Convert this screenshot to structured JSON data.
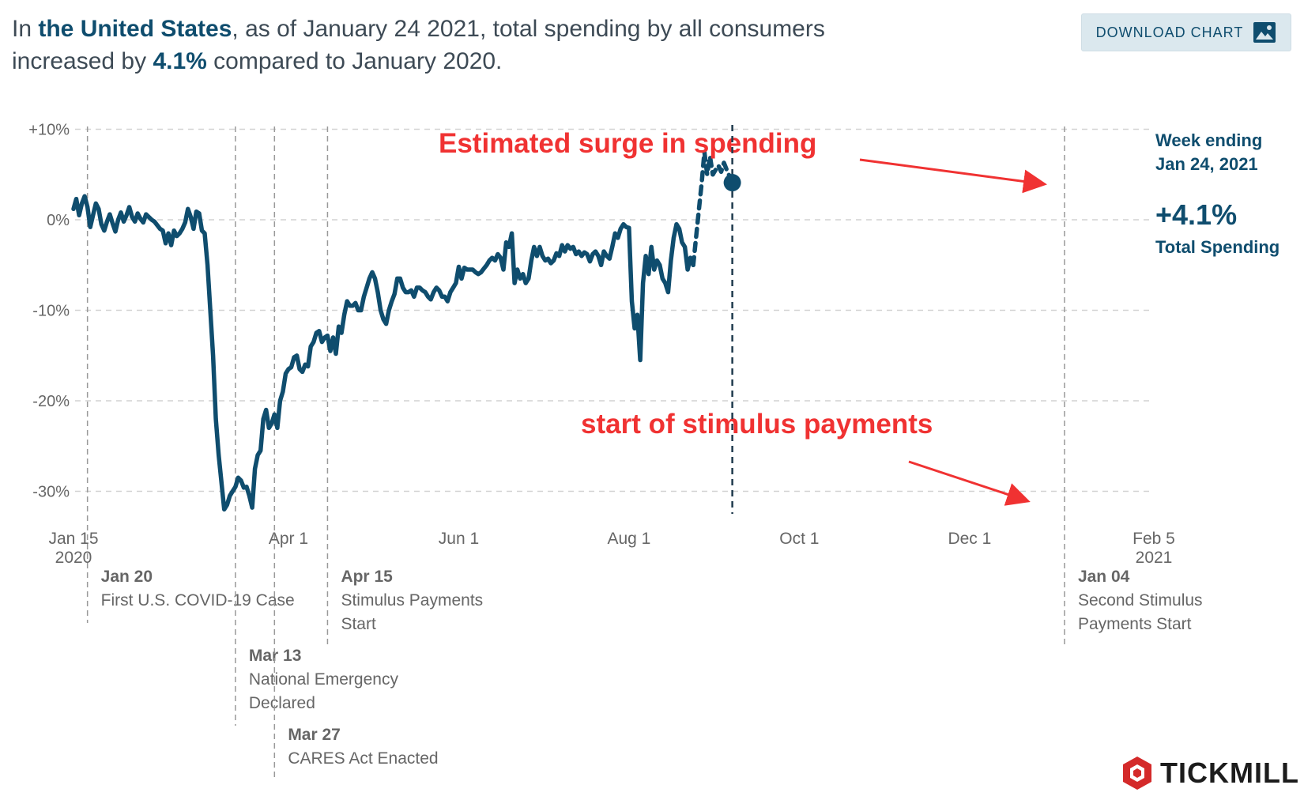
{
  "headline": {
    "prefix": "In ",
    "region": "the United States",
    "middle": ", as of January 24 2021, total spending by all consumers increased by ",
    "value": "4.1%",
    "suffix": " compared to January 2020."
  },
  "download_button": {
    "label": "DOWNLOAD CHART",
    "icon": "image-icon"
  },
  "colors": {
    "line": "#0f4d6e",
    "annotation_red": "#f03232",
    "grid": "#d2d2d2",
    "event": "#999999"
  },
  "chart_data": {
    "type": "line",
    "title": "Total spending by all consumers vs January 2020",
    "xlabel": "",
    "ylabel": "",
    "ylim": [
      -34,
      12
    ],
    "x_range_days": [
      0,
      387
    ],
    "y_ticks": [
      {
        "value": 10,
        "label": "+10%"
      },
      {
        "value": 0,
        "label": "0%"
      },
      {
        "value": -10,
        "label": "-10%"
      },
      {
        "value": -20,
        "label": "-20%"
      },
      {
        "value": -30,
        "label": "-30%"
      }
    ],
    "x_ticks": [
      {
        "day": 0,
        "label": "Jan 15",
        "sublabel": "2020"
      },
      {
        "day": 77,
        "label": "Apr 1",
        "sublabel": ""
      },
      {
        "day": 138,
        "label": "Jun 1",
        "sublabel": ""
      },
      {
        "day": 199,
        "label": "Aug 1",
        "sublabel": ""
      },
      {
        "day": 260,
        "label": "Oct 1",
        "sublabel": ""
      },
      {
        "day": 321,
        "label": "Dec 1",
        "sublabel": ""
      },
      {
        "day": 387,
        "label": "Feb 5",
        "sublabel": "2021"
      }
    ],
    "events": [
      {
        "day": 5,
        "date": "Jan 20",
        "desc": [
          "First U.S. COVID-19 Case"
        ],
        "level": 0
      },
      {
        "day": 58,
        "date": "Mar 13",
        "desc": [
          "National Emergency",
          "Declared"
        ],
        "level": 1
      },
      {
        "day": 72,
        "date": "Mar 27",
        "desc": [
          "CARES Act Enacted"
        ],
        "level": 2
      },
      {
        "day": 91,
        "date": "Apr 15",
        "desc": [
          "Stimulus Payments",
          "Start"
        ],
        "level": 0
      },
      {
        "day": 355,
        "date": "Jan 04",
        "desc": [
          "Second Stimulus",
          "Payments Start"
        ],
        "level": 0
      }
    ],
    "series": [
      {
        "name": "Total Spending",
        "style": "solid",
        "points": [
          [
            0,
            1.2
          ],
          [
            1,
            2.3
          ],
          [
            2,
            0.5
          ],
          [
            3,
            1.8
          ],
          [
            4,
            2.6
          ],
          [
            5,
            1.4
          ],
          [
            6,
            -0.8
          ],
          [
            7,
            0.5
          ],
          [
            8,
            1.8
          ],
          [
            9,
            1.2
          ],
          [
            10,
            -0.5
          ],
          [
            11,
            -1.2
          ],
          [
            12,
            -0.2
          ],
          [
            13,
            0.6
          ],
          [
            14,
            -0.4
          ],
          [
            15,
            -1.3
          ],
          [
            16,
            0
          ],
          [
            17,
            0.8
          ],
          [
            18,
            -0.2
          ],
          [
            19,
            0.5
          ],
          [
            20,
            1.4
          ],
          [
            21,
            0.3
          ],
          [
            22,
            -0.2
          ],
          [
            23,
            0.7
          ],
          [
            24,
            0.1
          ],
          [
            25,
            -0.3
          ],
          [
            26,
            0.6
          ],
          [
            27,
            0.3
          ],
          [
            28,
            0
          ],
          [
            29,
            -0.2
          ],
          [
            30,
            -0.6
          ],
          [
            31,
            -1
          ],
          [
            32,
            -1.2
          ],
          [
            33,
            -2.6
          ],
          [
            34,
            -1.5
          ],
          [
            35,
            -2.8
          ],
          [
            36,
            -1.2
          ],
          [
            37,
            -1.8
          ],
          [
            38,
            -1.5
          ],
          [
            39,
            -1
          ],
          [
            40,
            -0.3
          ],
          [
            41,
            1.2
          ],
          [
            42,
            0.3
          ],
          [
            43,
            -1
          ],
          [
            44,
            0.9
          ],
          [
            45,
            0.7
          ],
          [
            46,
            -1.2
          ],
          [
            47,
            -1.5
          ],
          [
            48,
            -5
          ],
          [
            49,
            -10
          ],
          [
            50,
            -15
          ],
          [
            51,
            -22
          ],
          [
            52,
            -26
          ],
          [
            53,
            -29
          ],
          [
            54,
            -32
          ],
          [
            55,
            -31.5
          ],
          [
            56,
            -30.5
          ],
          [
            57,
            -30
          ],
          [
            58,
            -29.5
          ],
          [
            59,
            -28.5
          ],
          [
            60,
            -28.8
          ],
          [
            61,
            -29.6
          ],
          [
            62,
            -29.5
          ],
          [
            63,
            -30.5
          ],
          [
            64,
            -31.8
          ],
          [
            65,
            -27.5
          ],
          [
            66,
            -26
          ],
          [
            67,
            -25.5
          ],
          [
            68,
            -22
          ],
          [
            69,
            -21
          ],
          [
            70,
            -23
          ],
          [
            71,
            -22.5
          ],
          [
            72,
            -21.5
          ],
          [
            73,
            -23
          ],
          [
            74,
            -20
          ],
          [
            75,
            -19
          ],
          [
            76,
            -17
          ],
          [
            77,
            -16.5
          ],
          [
            78,
            -16.3
          ],
          [
            79,
            -15.2
          ],
          [
            80,
            -15
          ],
          [
            81,
            -16.5
          ],
          [
            82,
            -16.8
          ],
          [
            83,
            -16
          ],
          [
            84,
            -16.2
          ],
          [
            85,
            -14
          ],
          [
            86,
            -13.5
          ],
          [
            87,
            -12.5
          ],
          [
            88,
            -12.3
          ],
          [
            89,
            -13.5
          ],
          [
            90,
            -13
          ],
          [
            91,
            -12.8
          ],
          [
            92,
            -14.5
          ],
          [
            93,
            -13
          ],
          [
            94,
            -14.8
          ],
          [
            95,
            -11.8
          ],
          [
            96,
            -12.5
          ],
          [
            97,
            -10.5
          ],
          [
            98,
            -9
          ],
          [
            99,
            -9.5
          ],
          [
            100,
            -9.5
          ],
          [
            101,
            -9.2
          ],
          [
            102,
            -10
          ],
          [
            103,
            -10
          ],
          [
            104,
            -8.5
          ],
          [
            105,
            -7.5
          ],
          [
            106,
            -6.5
          ],
          [
            107,
            -5.8
          ],
          [
            108,
            -6.5
          ],
          [
            109,
            -8
          ],
          [
            110,
            -10
          ],
          [
            111,
            -11
          ],
          [
            112,
            -11.5
          ],
          [
            113,
            -10
          ],
          [
            114,
            -9
          ],
          [
            115,
            -8.2
          ],
          [
            116,
            -6.5
          ],
          [
            117,
            -6.5
          ],
          [
            118,
            -7.5
          ],
          [
            119,
            -8
          ],
          [
            120,
            -8
          ],
          [
            121,
            -7.8
          ],
          [
            122,
            -8.5
          ],
          [
            123,
            -7.5
          ],
          [
            124,
            -7.5
          ],
          [
            125,
            -7.8
          ],
          [
            126,
            -8
          ],
          [
            127,
            -8.5
          ],
          [
            128,
            -8.8
          ],
          [
            129,
            -8
          ],
          [
            130,
            -7.5
          ],
          [
            131,
            -7.8
          ],
          [
            132,
            -8.5
          ],
          [
            133,
            -8.5
          ],
          [
            134,
            -9
          ],
          [
            135,
            -8
          ],
          [
            136,
            -7.5
          ],
          [
            137,
            -7
          ],
          [
            138,
            -5.2
          ],
          [
            139,
            -6.5
          ],
          [
            140,
            -5.3
          ],
          [
            141,
            -5.5
          ],
          [
            142,
            -5.5
          ],
          [
            143,
            -5.5
          ],
          [
            144,
            -5.8
          ],
          [
            145,
            -6
          ],
          [
            146,
            -5.8
          ],
          [
            147,
            -5.4
          ],
          [
            148,
            -5
          ],
          [
            149,
            -4.5
          ],
          [
            150,
            -4.2
          ],
          [
            151,
            -4.5
          ],
          [
            152,
            -3.8
          ],
          [
            153,
            -4.2
          ],
          [
            154,
            -5.5
          ],
          [
            155,
            -2.5
          ],
          [
            156,
            -3
          ],
          [
            157,
            -1.5
          ],
          [
            158,
            -7
          ],
          [
            159,
            -5.5
          ],
          [
            160,
            -6.5
          ],
          [
            161,
            -6
          ],
          [
            162,
            -7
          ],
          [
            163,
            -6.5
          ],
          [
            164,
            -4.5
          ],
          [
            165,
            -3
          ],
          [
            166,
            -4
          ],
          [
            167,
            -3
          ],
          [
            168,
            -4
          ],
          [
            169,
            -4.5
          ],
          [
            170,
            -4.3
          ],
          [
            171,
            -4.8
          ],
          [
            172,
            -4.5
          ],
          [
            173,
            -3.7
          ],
          [
            174,
            -4
          ],
          [
            175,
            -2.8
          ],
          [
            176,
            -3.5
          ],
          [
            177,
            -2.8
          ],
          [
            178,
            -3.2
          ],
          [
            179,
            -3
          ],
          [
            180,
            -3.8
          ],
          [
            181,
            -3.5
          ],
          [
            182,
            -4
          ],
          [
            183,
            -3.6
          ],
          [
            184,
            -3.8
          ],
          [
            185,
            -4.6
          ],
          [
            186,
            -3.8
          ],
          [
            187,
            -3.5
          ],
          [
            188,
            -4
          ],
          [
            189,
            -5
          ],
          [
            190,
            -3.5
          ],
          [
            191,
            -4
          ],
          [
            192,
            -4.3
          ],
          [
            193,
            -3
          ],
          [
            194,
            -1.5
          ],
          [
            195,
            -2
          ],
          [
            196,
            -1
          ],
          [
            197,
            -0.5
          ],
          [
            198,
            -0.8
          ],
          [
            199,
            -0.9
          ],
          [
            200,
            -9
          ],
          [
            201,
            -12
          ],
          [
            202,
            -10.5
          ],
          [
            203,
            -15.5
          ],
          [
            204,
            -7
          ],
          [
            205,
            -4
          ],
          [
            206,
            -6
          ],
          [
            207,
            -3
          ],
          [
            208,
            -5.5
          ],
          [
            209,
            -4.5
          ],
          [
            210,
            -5
          ],
          [
            211,
            -6.5
          ],
          [
            212,
            -7
          ],
          [
            213,
            -8
          ],
          [
            214,
            -4.5
          ],
          [
            215,
            -2
          ],
          [
            216,
            -0.5
          ],
          [
            217,
            -1
          ],
          [
            218,
            -2.5
          ],
          [
            219,
            -3
          ],
          [
            220,
            -5.5
          ],
          [
            221,
            -4.2
          ],
          [
            222,
            -5
          ]
        ]
      },
      {
        "name": "Estimated",
        "style": "dashed",
        "points": [
          [
            222,
            -5
          ],
          [
            223,
            -2
          ],
          [
            224,
            1
          ],
          [
            225,
            4
          ],
          [
            226,
            7.5
          ],
          [
            227,
            5
          ],
          [
            228,
            7
          ],
          [
            229,
            5
          ],
          [
            230,
            5.5
          ],
          [
            231,
            6
          ],
          [
            232,
            5.3
          ],
          [
            233,
            6.3
          ],
          [
            234,
            5.5
          ],
          [
            235,
            4.8
          ],
          [
            236,
            4.1
          ]
        ]
      }
    ],
    "current": {
      "heading": [
        "Week ending",
        "Jan 24, 2021"
      ],
      "value_label": "+4.1%",
      "value": 4.1,
      "sublabel": "Total Spending"
    },
    "annotations": [
      {
        "text": "Estimated surge in spending"
      },
      {
        "text": "start of stimulus payments"
      }
    ]
  },
  "logo": {
    "text": "TICKMILL"
  }
}
